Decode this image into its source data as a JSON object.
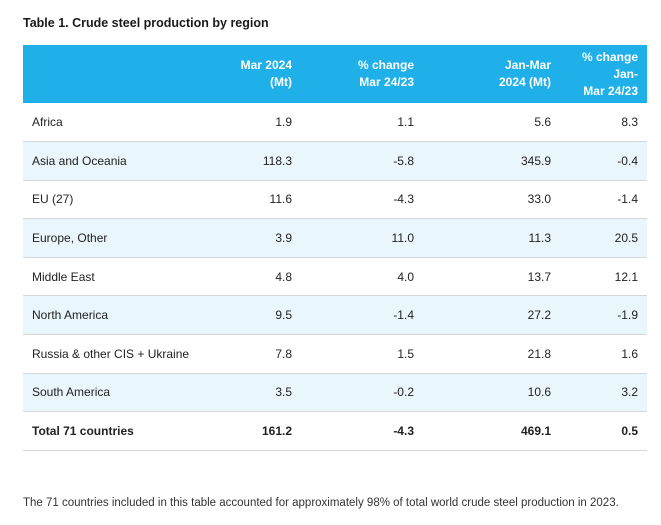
{
  "title": "Table 1. Crude steel production by region",
  "columns": [
    "",
    "Mar 2024\n(Mt)",
    "% change\nMar 24/23",
    "Jan-Mar\n2024 (Mt)",
    "% change Jan-\nMar 24/23"
  ],
  "rows": [
    {
      "region": "Africa",
      "mar2024": "1.9",
      "chg_mar": "1.1",
      "janmar2024": "5.6",
      "chg_janmar": "8.3"
    },
    {
      "region": "Asia and Oceania",
      "mar2024": "118.3",
      "chg_mar": "-5.8",
      "janmar2024": "345.9",
      "chg_janmar": "-0.4"
    },
    {
      "region": "EU (27)",
      "mar2024": "11.6",
      "chg_mar": "-4.3",
      "janmar2024": "33.0",
      "chg_janmar": "-1.4"
    },
    {
      "region": "Europe, Other",
      "mar2024": "3.9",
      "chg_mar": "11.0",
      "janmar2024": "11.3",
      "chg_janmar": "20.5"
    },
    {
      "region": "Middle East",
      "mar2024": "4.8",
      "chg_mar": "4.0",
      "janmar2024": "13.7",
      "chg_janmar": "12.1"
    },
    {
      "region": "North America",
      "mar2024": "9.5",
      "chg_mar": "-1.4",
      "janmar2024": "27.2",
      "chg_janmar": "-1.9"
    },
    {
      "region": "Russia & other CIS + Ukraine",
      "mar2024": "7.8",
      "chg_mar": "1.5",
      "janmar2024": "21.8",
      "chg_janmar": "1.6"
    },
    {
      "region": "South America",
      "mar2024": "3.5",
      "chg_mar": "-0.2",
      "janmar2024": "10.6",
      "chg_janmar": "3.2"
    }
  ],
  "total": {
    "region": "Total 71 countries",
    "mar2024": "161.2",
    "chg_mar": "-4.3",
    "janmar2024": "469.1",
    "chg_janmar": "0.5"
  },
  "footnote": "The 71 countries included in this table accounted for approximately 98% of total world crude steel production in 2023.",
  "colors": {
    "header_bg": "#1fb0ea",
    "alt_row_bg": "#e9f6fc",
    "border": "#d6d6d6"
  }
}
